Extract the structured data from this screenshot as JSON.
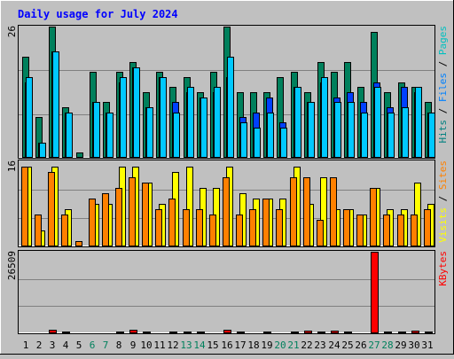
{
  "chart_data": {
    "title": "Daily usage for July 2024",
    "days": [
      "1",
      "2",
      "3",
      "4",
      "5",
      "6",
      "7",
      "8",
      "9",
      "10",
      "11",
      "12",
      "13",
      "14",
      "15",
      "16",
      "17",
      "18",
      "19",
      "20",
      "21",
      "22",
      "23",
      "24",
      "25",
      "26",
      "27",
      "28",
      "29",
      "30",
      "31"
    ],
    "weekend_days": [
      6,
      7,
      13,
      14,
      20,
      21,
      27,
      28
    ],
    "panels": [
      {
        "type": "bar",
        "max_label": "26",
        "ylim": [
          0,
          26
        ],
        "legend": [
          {
            "text": "Pages",
            "color": "#00c0c0"
          },
          {
            "text": "Files",
            "color": "#0080ff"
          },
          {
            "text": "Hits",
            "color": "#008080"
          }
        ],
        "series": [
          {
            "name": "Hits",
            "color": "#00805c",
            "values": [
              20,
              8,
              26,
              10,
              1,
              17,
              11,
              17,
              19,
              13,
              17,
              14,
              16,
              13,
              17,
              26,
              13,
              13,
              13,
              16,
              17,
              13,
              19,
              17,
              19,
              14,
              25,
              13,
              15,
              14,
              11
            ]
          },
          {
            "name": "Files",
            "color": "#0040ff",
            "values": [
              15,
              3,
              21,
              9,
              0,
              11,
              9,
              15,
              18,
              10,
              16,
              11,
              13,
              12,
              13,
              16,
              8,
              9,
              12,
              7,
              14,
              11,
              15,
              12,
              13,
              11,
              15,
              10,
              14,
              13,
              9
            ]
          },
          {
            "name": "Pages",
            "color": "#00c8ff",
            "values": [
              16,
              3,
              21,
              9,
              0,
              11,
              9,
              16,
              18,
              10,
              16,
              9,
              14,
              12,
              14,
              20,
              7,
              6,
              9,
              6,
              14,
              11,
              16,
              11,
              11,
              9,
              14,
              9,
              10,
              14,
              9
            ]
          }
        ]
      },
      {
        "type": "bar",
        "max_label": "16",
        "ylim": [
          0,
          16
        ],
        "legend": [
          {
            "text": "Sites",
            "color": "#ff8000"
          },
          {
            "text": "Visits",
            "color": "#ffff00"
          }
        ],
        "series": [
          {
            "name": "Visits",
            "color": "#ffff00",
            "values": [
              15,
              3,
              15,
              7,
              0,
              8,
              8,
              15,
              15,
              12,
              8,
              14,
              15,
              11,
              11,
              15,
              10,
              9,
              9,
              9,
              15,
              8,
              13,
              7,
              7,
              6,
              11,
              7,
              7,
              12,
              8
            ]
          },
          {
            "name": "Sites",
            "color": "#ff8000",
            "values": [
              15,
              6,
              14,
              6,
              1,
              9,
              10,
              11,
              13,
              12,
              7,
              9,
              7,
              7,
              6,
              13,
              6,
              7,
              9,
              7,
              13,
              13,
              5,
              13,
              7,
              6,
              11,
              6,
              6,
              6,
              7
            ]
          }
        ]
      },
      {
        "type": "bar",
        "max_label": "26509",
        "ylim": [
          0,
          26509
        ],
        "legend": [
          {
            "text": "KBytes",
            "color": "#ff0000"
          }
        ],
        "series": [
          {
            "name": "KBytes",
            "color": "#ff0000",
            "values": [
              200,
              150,
              1050,
              500,
              150,
              250,
              400,
              650,
              1100,
              650,
              400,
              500,
              650,
              650,
              400,
              1150,
              500,
              250,
              650,
              250,
              650,
              800,
              650,
              800,
              650,
              400,
              26509,
              500,
              650,
              800,
              500
            ]
          }
        ]
      }
    ]
  }
}
